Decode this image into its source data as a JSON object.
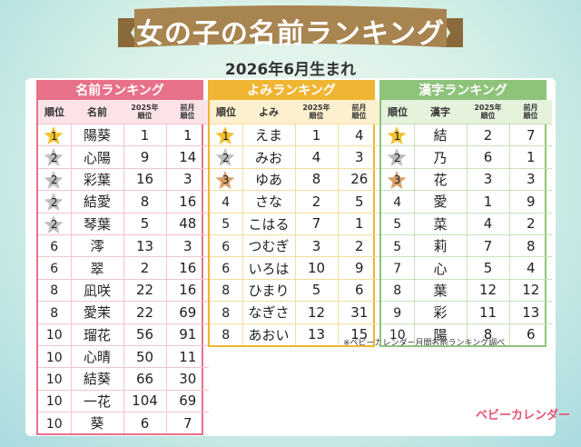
{
  "title": "女の子の名前ランキング",
  "subtitle": "2026年6月生まれ",
  "sections": [
    {
      "title": "名前ランキング",
      "columns": [
        "順位",
        "名前",
        "2025年\n順位",
        "前月\n順位"
      ],
      "rows": [
        [
          1,
          "陽葵",
          1,
          1
        ],
        [
          2,
          "心陽",
          9,
          14
        ],
        [
          2,
          "彩葉",
          16,
          3
        ],
        [
          2,
          "結愛",
          8,
          16
        ],
        [
          2,
          "琴葉",
          5,
          48
        ],
        [
          6,
          "澪",
          13,
          3
        ],
        [
          6,
          "翠",
          2,
          16
        ],
        [
          8,
          "凪咲",
          22,
          16
        ],
        [
          8,
          "愛茉",
          22,
          69
        ],
        [
          10,
          "瑠花",
          56,
          91
        ],
        [
          10,
          "心晴",
          50,
          11
        ],
        [
          10,
          "結葵",
          66,
          30
        ],
        [
          10,
          "一花",
          104,
          69
        ],
        [
          10,
          "葵",
          6,
          7
        ]
      ]
    },
    {
      "title": "よみランキング",
      "columns": [
        "順位",
        "よみ",
        "2025年\n順位",
        "前月\n順位"
      ],
      "rows": [
        [
          1,
          "えま",
          1,
          4
        ],
        [
          2,
          "みお",
          4,
          3
        ],
        [
          3,
          "ゆあ",
          8,
          26
        ],
        [
          4,
          "さな",
          2,
          5
        ],
        [
          5,
          "こはる",
          7,
          1
        ],
        [
          6,
          "つむぎ",
          3,
          2
        ],
        [
          6,
          "いろは",
          10,
          9
        ],
        [
          8,
          "ひまり",
          5,
          6
        ],
        [
          8,
          "なぎさ",
          12,
          31
        ],
        [
          8,
          "あおい",
          13,
          15
        ]
      ]
    },
    {
      "title": "漢字ランキング",
      "columns": [
        "順位",
        "漢字",
        "2025年\n順位",
        "前月\n順位"
      ],
      "rows": [
        [
          1,
          "結",
          2,
          7
        ],
        [
          2,
          "乃",
          6,
          1
        ],
        [
          3,
          "花",
          3,
          3
        ],
        [
          4,
          "愛",
          1,
          9
        ],
        [
          5,
          "菜",
          4,
          2
        ],
        [
          5,
          "莉",
          7,
          8
        ],
        [
          7,
          "心",
          5,
          4
        ],
        [
          8,
          "葉",
          12,
          12
        ],
        [
          9,
          "彩",
          11,
          13
        ],
        [
          10,
          "陽",
          8,
          6
        ]
      ]
    }
  ],
  "note": "※ベビーカレンダー月間名前ランキング調べ",
  "logo": "ベビーカレンダー"
}
